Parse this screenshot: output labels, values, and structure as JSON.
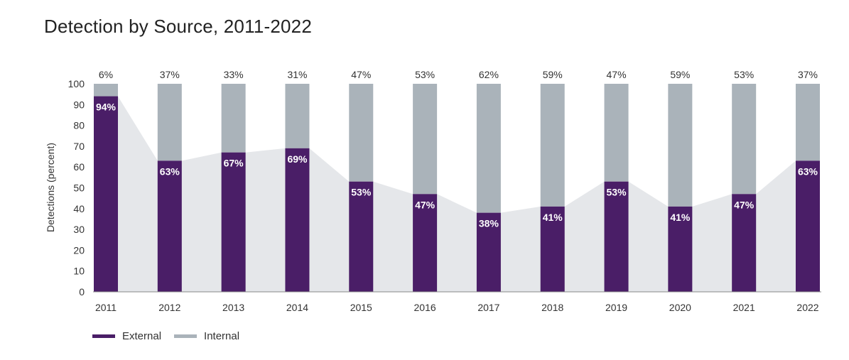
{
  "colors": {
    "external": "#4a1e67",
    "internal": "#aab3ba",
    "area": "#e5e7ea",
    "axis": "#333333"
  },
  "chart_data": {
    "type": "bar",
    "stacked": true,
    "title": "Detection by Source, 2011-2022",
    "xlabel": "",
    "ylabel": "Detections (percent)",
    "ylim": [
      0,
      100
    ],
    "yticks": [
      0,
      10,
      20,
      30,
      40,
      50,
      60,
      70,
      80,
      90,
      100
    ],
    "categories": [
      "2011",
      "2012",
      "2013",
      "2014",
      "2015",
      "2016",
      "2017",
      "2018",
      "2019",
      "2020",
      "2021",
      "2022"
    ],
    "series": [
      {
        "name": "External",
        "values": [
          94,
          63,
          67,
          69,
          53,
          47,
          38,
          41,
          53,
          41,
          47,
          63
        ],
        "labels": [
          "94%",
          "63%",
          "67%",
          "69%",
          "53%",
          "47%",
          "38%",
          "41%",
          "53%",
          "41%",
          "47%",
          "63%"
        ]
      },
      {
        "name": "Internal",
        "values": [
          6,
          37,
          33,
          31,
          47,
          53,
          62,
          59,
          47,
          59,
          53,
          37
        ],
        "labels": [
          "6%",
          "37%",
          "33%",
          "31%",
          "47%",
          "53%",
          "62%",
          "59%",
          "47%",
          "59%",
          "53%",
          "37%"
        ]
      }
    ],
    "legend": [
      "External",
      "Internal"
    ],
    "legend_position": "bottom-left",
    "grid": false
  }
}
